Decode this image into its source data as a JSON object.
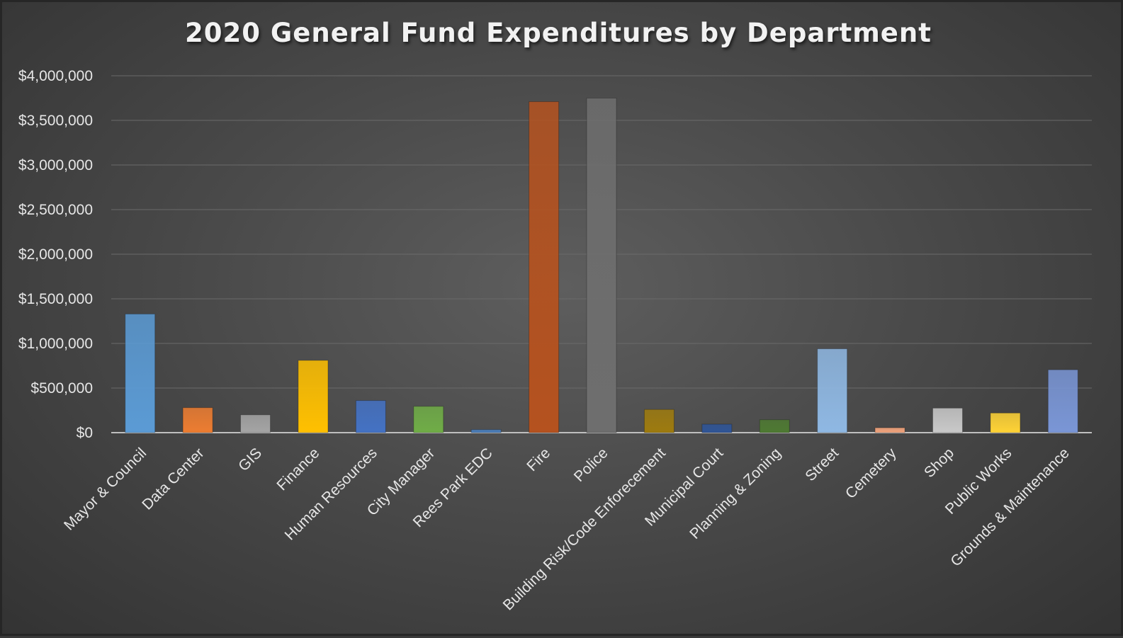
{
  "chart_data": {
    "type": "bar",
    "title": "2020 General Fund Expenditures by Department",
    "xlabel": "",
    "ylabel": "",
    "ylim": [
      0,
      4000000
    ],
    "yticks": [
      0,
      500000,
      1000000,
      1500000,
      2000000,
      2500000,
      3000000,
      3500000,
      4000000
    ],
    "ytick_labels": [
      "$0",
      "$500,000",
      "$1,000,000",
      "$1,500,000",
      "$2,000,000",
      "$2,500,000",
      "$3,000,000",
      "$3,500,000",
      "$4,000,000"
    ],
    "grid": true,
    "legend": "none",
    "categories": [
      "Mayor & Council",
      "Data Center",
      "GIS",
      "Finance",
      "Human Resources",
      "City Manager",
      "Rees Park EDC",
      "Fire",
      "Police",
      "Building Risk/Code Enforecement",
      "Municipal Court",
      "Planning & Zoning",
      "Street",
      "Cemetery",
      "Shop",
      "Public Works",
      "Grounds & Maintenance"
    ],
    "values": [
      1330000,
      280000,
      200000,
      810000,
      360000,
      295000,
      35000,
      3710000,
      3750000,
      260000,
      95000,
      145000,
      940000,
      55000,
      275000,
      220000,
      705000
    ],
    "colors": [
      "#5b9bd5",
      "#ed7d31",
      "#a5a5a5",
      "#ffc000",
      "#4472c4",
      "#70ad47",
      "#4a7ebb",
      "#b5521f",
      "#6e6e6e",
      "#9e7b0f",
      "#2f5597",
      "#4e7a32",
      "#8fb8e3",
      "#f4a57d",
      "#c9c9c9",
      "#ffd336",
      "#7a96d6"
    ]
  }
}
